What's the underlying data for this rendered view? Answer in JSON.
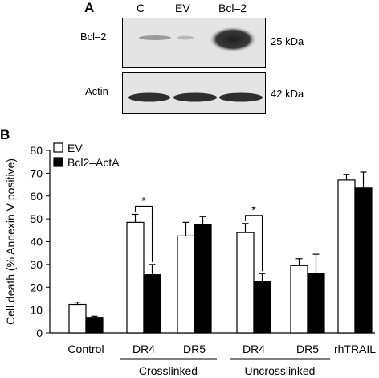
{
  "panelA": {
    "label": "A",
    "lanes": [
      "C",
      "EV",
      "Bcl–2"
    ],
    "rows": [
      {
        "label": "Bcl–2",
        "size": "25 kDa"
      },
      {
        "label": "Actin",
        "size": "42 kDa"
      }
    ]
  },
  "panelB": {
    "label": "B"
  },
  "chart_data": {
    "type": "bar",
    "ylabel": "Cell death (% Annexin V positive)",
    "xlabel": "",
    "ylim": [
      0,
      80
    ],
    "yticks": [
      0,
      10,
      20,
      30,
      40,
      50,
      60,
      70,
      80
    ],
    "categories": [
      "Control",
      "DR4",
      "DR5",
      "DR4",
      "DR5",
      "rhTRAIL"
    ],
    "groups": [
      {
        "label": "Crosslinked",
        "categories": [
          1,
          2
        ]
      },
      {
        "label": "Uncrosslinked",
        "categories": [
          3,
          4
        ]
      }
    ],
    "series": [
      {
        "name": "EV",
        "color": "#ffffff",
        "values": [
          12.5,
          48.5,
          42.5,
          44,
          29.5,
          67
        ],
        "errors": [
          1,
          3.5,
          6,
          4,
          3,
          2.5
        ]
      },
      {
        "name": "Bcl2–ActA",
        "color": "#000000",
        "values": [
          6.8,
          25.5,
          47.5,
          22.5,
          26,
          63.5
        ],
        "errors": [
          0.5,
          4.5,
          3.5,
          3.5,
          8.5,
          7
        ]
      }
    ],
    "annotations": [
      {
        "text": "*",
        "category": 1
      },
      {
        "text": "*",
        "category": 3
      }
    ],
    "legend_position": "top-left"
  }
}
